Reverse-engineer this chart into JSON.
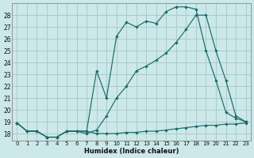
{
  "xlabel": "Humidex (Indice chaleur)",
  "bg_color": "#cce8e8",
  "grid_color": "#aacccc",
  "line_color": "#1a6b6b",
  "x_ticks": [
    0,
    1,
    2,
    3,
    4,
    5,
    6,
    7,
    8,
    9,
    10,
    11,
    12,
    13,
    14,
    15,
    16,
    17,
    18,
    19,
    20,
    21,
    22,
    23
  ],
  "y_ticks": [
    18,
    19,
    20,
    21,
    22,
    23,
    24,
    25,
    26,
    27,
    28
  ],
  "xlim": [
    -0.5,
    23.5
  ],
  "ylim": [
    17.4,
    29.0
  ],
  "line1_x": [
    0,
    1,
    2,
    3,
    4,
    5,
    6,
    7,
    8,
    9,
    10,
    11,
    12,
    13,
    14,
    15,
    16,
    17,
    18,
    19,
    20,
    21,
    22,
    23
  ],
  "line1_y": [
    18.9,
    18.2,
    18.2,
    17.7,
    17.7,
    18.2,
    18.2,
    18.2,
    18.0,
    18.0,
    18.0,
    18.1,
    18.1,
    18.2,
    18.2,
    18.3,
    18.4,
    18.5,
    18.6,
    18.7,
    18.7,
    18.8,
    18.8,
    18.9
  ],
  "line2_x": [
    0,
    1,
    2,
    3,
    4,
    5,
    6,
    7,
    8,
    9,
    10,
    11,
    12,
    13,
    14,
    15,
    16,
    17,
    18,
    19,
    20,
    21,
    22,
    23
  ],
  "line2_y": [
    18.9,
    18.2,
    18.2,
    17.7,
    17.7,
    18.2,
    18.2,
    18.2,
    23.3,
    21.0,
    26.2,
    27.4,
    27.0,
    27.5,
    27.3,
    28.3,
    28.7,
    28.7,
    28.5,
    25.0,
    22.5,
    19.8,
    19.3,
    19.0
  ],
  "line3_x": [
    0,
    1,
    2,
    3,
    4,
    5,
    6,
    7,
    8,
    9,
    10,
    11,
    12,
    13,
    14,
    15,
    16,
    17,
    18,
    19,
    20,
    21,
    22,
    23
  ],
  "line3_y": [
    18.9,
    18.2,
    18.2,
    17.7,
    17.7,
    18.2,
    18.2,
    18.0,
    18.3,
    19.5,
    21.0,
    22.0,
    23.3,
    23.7,
    24.2,
    24.8,
    25.7,
    26.8,
    28.0,
    28.0,
    25.0,
    22.5,
    19.5,
    19.0
  ]
}
